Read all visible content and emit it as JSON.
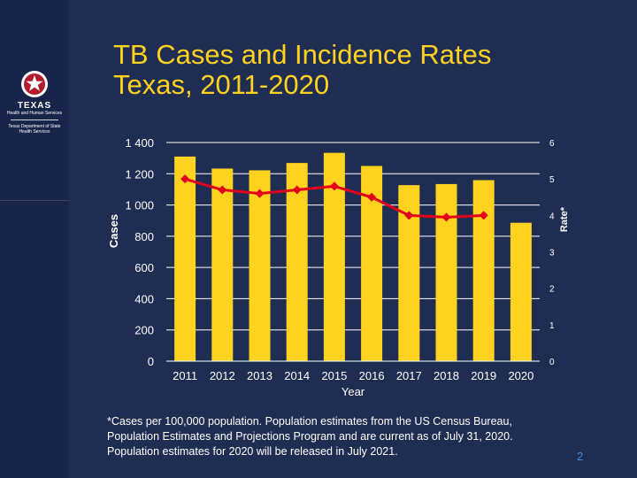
{
  "slide": {
    "title_lines": [
      "TB Cases and Incidence Rates",
      "Texas, 2011-2020"
    ],
    "footnote_lines": [
      "*Cases per 100,000 population. Population estimates from the US Census Bureau,",
      "Population Estimates and Projections Program and are current as of July 31, 2020.",
      "Population estimates for 2020 will be released in July 2021."
    ],
    "page_number": "2"
  },
  "logo": {
    "title": "TEXAS",
    "subtitle": "Health and Human Services",
    "department": "Texas Department of State Health Services"
  },
  "colors": {
    "background": "#1f2d52",
    "title": "#ffd21f",
    "bars": "#ffd21f",
    "line": "#e3001b",
    "text": "#ffffff",
    "page_number": "#4f8ad9"
  },
  "chart_data": {
    "type": "bar",
    "categories": [
      "2011",
      "2012",
      "2013",
      "2014",
      "2015",
      "2016",
      "2017",
      "2018",
      "2019",
      "2020"
    ],
    "series": [
      {
        "name": "Cases",
        "type": "bar",
        "axis": "left",
        "values": [
          1310,
          1233,
          1222,
          1269,
          1334,
          1250,
          1127,
          1134,
          1159,
          886
        ]
      },
      {
        "name": "Rate",
        "type": "line",
        "axis": "right",
        "values": [
          5.0,
          4.7,
          4.6,
          4.7,
          4.8,
          4.5,
          4.0,
          3.95,
          4.0,
          null
        ]
      }
    ],
    "xlabel": "Year",
    "ylabel_left": "Cases",
    "ylabel_right": "Rate*",
    "ylim_left": [
      0,
      1400
    ],
    "ylim_right": [
      0,
      6
    ],
    "yticks_left": [
      "0",
      "200",
      "400",
      "600",
      "800",
      "1 000",
      "1 200",
      "1 400"
    ],
    "yticks_right": [
      "0",
      "1",
      "2",
      "3",
      "4",
      "5",
      "6"
    ],
    "grid": true
  }
}
